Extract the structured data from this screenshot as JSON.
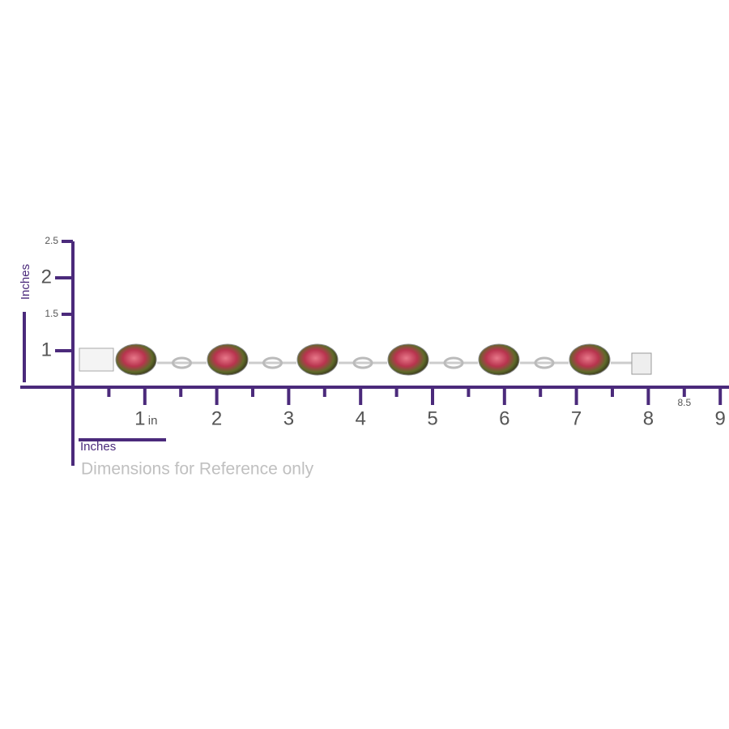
{
  "x_ruler": {
    "title": "Inches",
    "unit": "in",
    "ticks": [
      1,
      2,
      3,
      4,
      5,
      6,
      7,
      8,
      9
    ],
    "small_ticks": [
      8.5
    ],
    "minor_ticks": [
      0.5,
      1.5,
      2.5,
      3.5,
      4.5,
      5.5,
      6.5,
      7.5
    ]
  },
  "y_ruler": {
    "title": "Inches",
    "ticks": [
      2,
      1
    ],
    "small_ticks": [
      2.5,
      1.5
    ]
  },
  "note": "Dimensions for Reference only"
}
